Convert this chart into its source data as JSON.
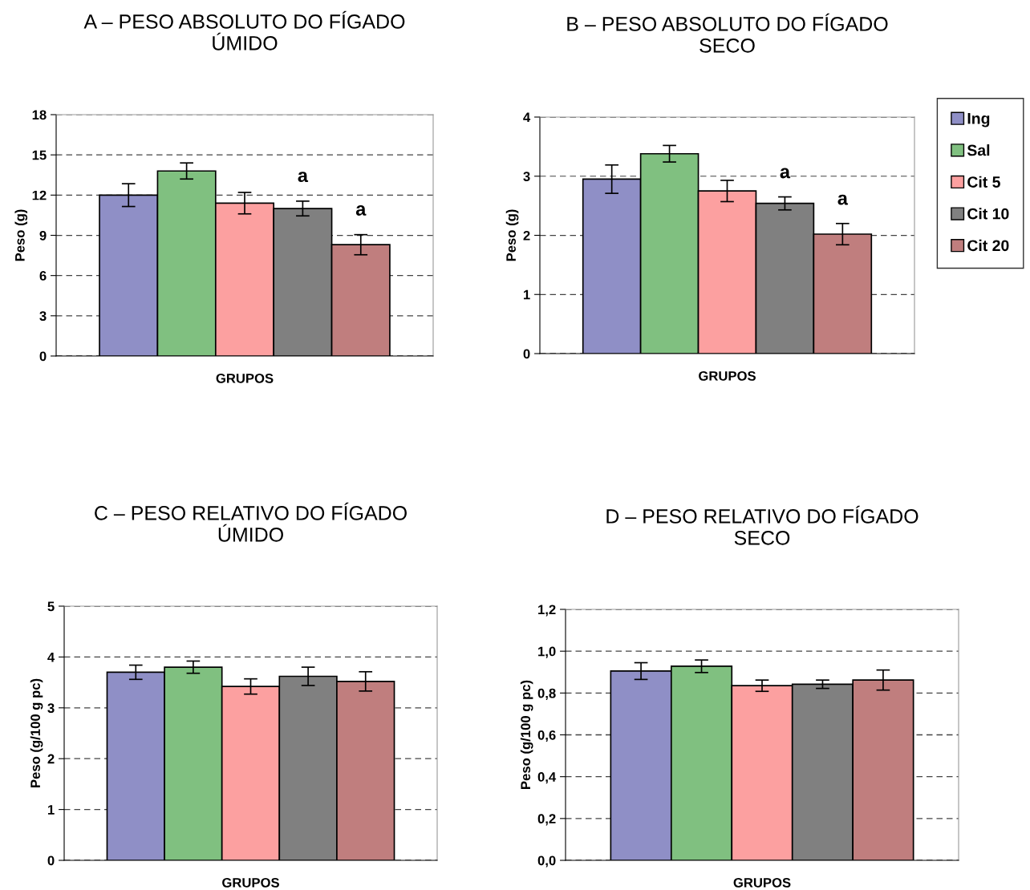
{
  "chart_data": [
    {
      "type": "bar",
      "title": "A – PESO ABSOLUTO DO FÍGADO\nÚMIDO",
      "xlabel": "GRUPOS",
      "ylabel": "Peso (g)",
      "categories": [
        null
      ],
      "ylim": [
        0,
        18
      ],
      "yticks": [
        0,
        3,
        6,
        9,
        12,
        15,
        18
      ],
      "grid": "y",
      "legend": false,
      "series": [
        {
          "color": "#8f8fc6",
          "values": [
            12.0
          ],
          "errors": [
            0.85
          ]
        },
        {
          "color": "#80c080",
          "values": [
            13.8
          ],
          "errors": [
            0.6
          ]
        },
        {
          "color": "#fca0a0",
          "values": [
            11.4
          ],
          "errors": [
            0.8
          ]
        },
        {
          "color": "#808080",
          "values": [
            11.0
          ],
          "errors": [
            0.55
          ]
        },
        {
          "color": "#c07e7e",
          "values": [
            8.3
          ],
          "errors": [
            0.75
          ]
        }
      ],
      "annotations": [
        "a",
        "a"
      ]
    },
    {
      "type": "bar",
      "title": "B – PESO ABSOLUTO DO FÍGADO\nSECO",
      "xlabel": "GRUPOS",
      "ylabel": "Peso (g)",
      "categories": [
        null
      ],
      "ylim": [
        0,
        4
      ],
      "yticks": [
        0,
        1,
        2,
        3,
        4
      ],
      "grid": "y",
      "legend": "right",
      "series": [
        {
          "name": "Ing",
          "color": "#8f8fc6",
          "values": [
            2.95
          ],
          "errors": [
            0.24
          ]
        },
        {
          "name": "Sal",
          "color": "#80c080",
          "values": [
            3.38
          ],
          "errors": [
            0.14
          ]
        },
        {
          "name": "Cit 5",
          "color": "#fca0a0",
          "values": [
            2.75
          ],
          "errors": [
            0.18
          ]
        },
        {
          "name": "Cit 10",
          "color": "#808080",
          "values": [
            2.54
          ],
          "errors": [
            0.11
          ]
        },
        {
          "name": "Cit 20",
          "color": "#c07e7e",
          "values": [
            2.02
          ],
          "errors": [
            0.18
          ]
        }
      ],
      "annotations": [
        "a",
        "a"
      ]
    },
    {
      "type": "bar",
      "title": "C – PESO RELATIVO DO FÍGADO\nÚMIDO",
      "xlabel": "GRUPOS",
      "ylabel": "Peso (g/100 g pc)",
      "categories": [
        null
      ],
      "ylim": [
        0,
        5
      ],
      "yticks": [
        0,
        1,
        2,
        3,
        4,
        5
      ],
      "grid": "y",
      "legend": false,
      "series": [
        {
          "color": "#8f8fc6",
          "values": [
            3.7
          ],
          "errors": [
            0.14
          ]
        },
        {
          "color": "#80c080",
          "values": [
            3.8
          ],
          "errors": [
            0.12
          ]
        },
        {
          "color": "#fca0a0",
          "values": [
            3.42
          ],
          "errors": [
            0.15
          ]
        },
        {
          "color": "#808080",
          "values": [
            3.62
          ],
          "errors": [
            0.18
          ]
        },
        {
          "color": "#c07e7e",
          "values": [
            3.52
          ],
          "errors": [
            0.19
          ]
        }
      ]
    },
    {
      "type": "bar",
      "title": "D – PESO RELATIVO DO FÍGADO\nSECO",
      "xlabel": "GRUPOS",
      "ylabel": "Peso (g/100 g pc)",
      "categories": [
        null
      ],
      "ylim": [
        0,
        1.2
      ],
      "grid": "y",
      "legend": false,
      "yticks": [
        {
          "value": 0,
          "label": "0,0"
        },
        {
          "value": 0.2,
          "label": "0,2"
        },
        {
          "value": 0.4,
          "label": "0,4"
        },
        {
          "value": 0.6,
          "label": "0,6"
        },
        {
          "value": 0.8,
          "label": "0,8"
        },
        {
          "value": 1.0,
          "label": "1,0"
        },
        {
          "value": 1.2,
          "label": "1,2"
        }
      ],
      "series": [
        {
          "color": "#8f8fc6",
          "values": [
            0.905
          ],
          "errors": [
            0.04
          ]
        },
        {
          "color": "#80c080",
          "values": [
            0.928
          ],
          "errors": [
            0.03
          ]
        },
        {
          "color": "#fca0a0",
          "values": [
            0.835
          ],
          "errors": [
            0.027
          ]
        },
        {
          "color": "#808080",
          "values": [
            0.842
          ],
          "errors": [
            0.02
          ]
        },
        {
          "color": "#c07e7e",
          "values": [
            0.862
          ],
          "errors": [
            0.048
          ]
        }
      ]
    }
  ]
}
